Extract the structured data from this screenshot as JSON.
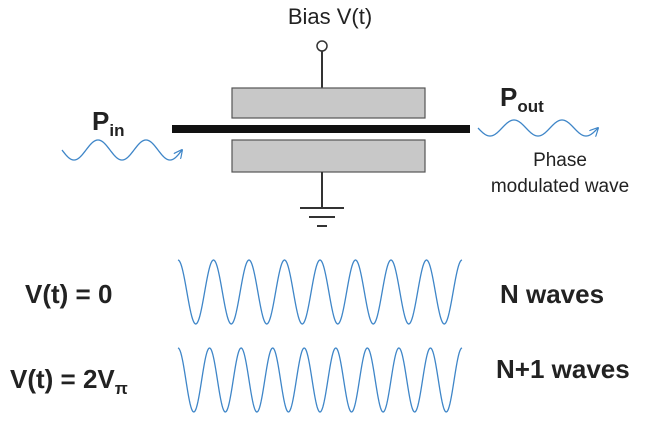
{
  "bias_label": "Bias V(t)",
  "input": {
    "symbol": "P",
    "subscript": "in"
  },
  "output": {
    "symbol": "P",
    "subscript": "out",
    "caption": [
      "Phase",
      "modulated wave"
    ]
  },
  "cases": [
    {
      "condition": "V(t) = 0",
      "result": "N waves"
    },
    {
      "condition": "V(t) = 2V",
      "condition_subscript": "π",
      "result": "N+1 waves"
    }
  ]
}
